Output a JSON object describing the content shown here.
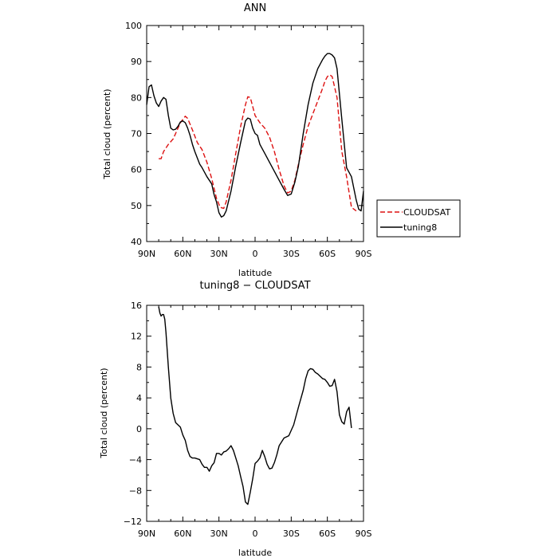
{
  "chart_data": [
    {
      "type": "line",
      "title": "ANN",
      "xlabel": "latitude",
      "ylabel": "Total cloud (percent)",
      "xlim": [
        90,
        -90
      ],
      "ylim": [
        40,
        100
      ],
      "xticks": [
        {
          "value": 90,
          "label": "90N"
        },
        {
          "value": 60,
          "label": "60N"
        },
        {
          "value": 30,
          "label": "30N"
        },
        {
          "value": 0,
          "label": "0"
        },
        {
          "value": -30,
          "label": "30S"
        },
        {
          "value": -60,
          "label": "60S"
        },
        {
          "value": -90,
          "label": "90S"
        }
      ],
      "yticks": [
        40,
        50,
        60,
        70,
        80,
        90,
        100
      ],
      "grid": false,
      "legend": "right",
      "series": [
        {
          "name": "CLOUDSAT",
          "color": "#dd1111",
          "dash": "dashed",
          "x": [
            80,
            78,
            76,
            72,
            68,
            66,
            62,
            58,
            56,
            52,
            48,
            44,
            40,
            36,
            32,
            29,
            26,
            24,
            20,
            16,
            12,
            8,
            6,
            4,
            0,
            -4,
            -8,
            -12,
            -16,
            -20,
            -24,
            -27,
            -30,
            -33,
            -36,
            -40,
            -44,
            -48,
            -52,
            -56,
            -58,
            -60,
            -62,
            -64,
            -68,
            -72,
            -76,
            -80,
            -84
          ],
          "y": [
            63,
            63,
            65,
            67,
            68.5,
            70,
            73,
            74.8,
            74.2,
            71,
            67.5,
            65.5,
            62,
            57.5,
            52,
            49.5,
            49.2,
            51,
            57,
            64.5,
            72,
            78,
            80.2,
            80,
            75,
            73,
            71.5,
            69,
            65,
            60,
            55.5,
            53.5,
            54,
            57,
            61.5,
            67,
            72,
            75.5,
            79,
            82.5,
            84.5,
            85.8,
            86.3,
            85.8,
            80,
            65,
            58,
            49.5,
            48.5
          ]
        },
        {
          "name": "tuning8",
          "color": "#000000",
          "dash": "solid",
          "x": [
            90,
            88,
            86,
            84,
            82,
            80,
            78,
            76,
            74,
            72,
            70,
            68,
            66,
            64,
            62,
            60,
            58,
            56,
            54,
            52,
            50,
            46,
            44,
            40,
            36,
            34,
            32,
            30,
            28,
            26,
            24,
            20,
            16,
            12,
            8,
            6,
            4,
            2,
            0,
            -2,
            -4,
            -8,
            -12,
            -16,
            -20,
            -24,
            -27,
            -30,
            -33,
            -36,
            -40,
            -44,
            -48,
            -52,
            -56,
            -58,
            -60,
            -62,
            -64,
            -66,
            -68,
            -72,
            -76,
            -80,
            -84,
            -86,
            -88,
            -90
          ],
          "y": [
            78,
            83,
            83.5,
            80.5,
            78.5,
            77.5,
            79,
            80,
            79.5,
            75,
            71.5,
            71,
            71.2,
            72,
            73.2,
            73.5,
            73,
            71.5,
            69.5,
            67,
            65,
            61.5,
            60.5,
            58,
            56,
            53,
            51,
            48,
            46.8,
            47.2,
            48.5,
            54,
            61,
            67.5,
            73.5,
            74.3,
            74,
            71.5,
            70,
            69.5,
            67,
            64.5,
            62,
            59.5,
            57,
            54.5,
            52.8,
            53.2,
            56.5,
            61,
            70,
            78,
            84,
            88,
            90.5,
            91.5,
            92.2,
            92.2,
            91.8,
            91,
            88,
            74,
            60.5,
            58,
            51.5,
            49,
            48.5,
            54
          ]
        }
      ]
    },
    {
      "type": "line",
      "title": "tuning8 − CLOUDSAT",
      "xlabel": "latitude",
      "ylabel": "Total cloud (percent)",
      "xlim": [
        90,
        -90
      ],
      "ylim": [
        -12,
        16
      ],
      "xticks": [
        {
          "value": 90,
          "label": "90N"
        },
        {
          "value": 60,
          "label": "60N"
        },
        {
          "value": 30,
          "label": "30N"
        },
        {
          "value": 0,
          "label": "0"
        },
        {
          "value": -30,
          "label": "30S"
        },
        {
          "value": -60,
          "label": "60S"
        },
        {
          "value": -90,
          "label": "90S"
        }
      ],
      "yticks": [
        -12,
        -8,
        -4,
        0,
        4,
        8,
        12,
        16
      ],
      "grid": false,
      "series": [
        {
          "color": "#000000",
          "dash": "solid",
          "x": [
            80,
            79,
            78,
            77,
            76,
            75,
            74,
            72,
            70,
            68,
            66,
            64,
            62,
            60,
            58,
            56,
            54,
            52,
            50,
            46,
            44,
            42,
            40,
            38,
            36,
            34,
            32,
            30,
            28,
            26,
            24,
            22,
            20,
            18,
            16,
            14,
            12,
            10,
            8,
            6,
            4,
            2,
            0,
            -2,
            -4,
            -6,
            -8,
            -10,
            -12,
            -14,
            -16,
            -18,
            -20,
            -24,
            -28,
            -32,
            -36,
            -40,
            -42,
            -44,
            -46,
            -48,
            -50,
            -52,
            -54,
            -56,
            -58,
            -60,
            -62,
            -64,
            -66,
            -68,
            -70,
            -72,
            -74,
            -76,
            -78,
            -80
          ],
          "y": [
            15.8,
            15,
            14.6,
            14.8,
            14.8,
            14.2,
            12.5,
            8,
            4,
            2,
            0.8,
            0.5,
            0.2,
            -0.8,
            -1.5,
            -2.8,
            -3.6,
            -3.8,
            -3.8,
            -4,
            -4.6,
            -5,
            -5,
            -5.5,
            -4.8,
            -4.4,
            -3.2,
            -3.2,
            -3.4,
            -3,
            -2.9,
            -2.6,
            -2.2,
            -2.8,
            -3.8,
            -4.8,
            -6.2,
            -7.5,
            -9.5,
            -9.8,
            -8.2,
            -6.5,
            -4.5,
            -4.2,
            -3.8,
            -2.8,
            -3.6,
            -4.6,
            -5.2,
            -5.1,
            -4.4,
            -3.4,
            -2.2,
            -1.2,
            -0.9,
            0.5,
            2.8,
            5,
            6.5,
            7.5,
            7.8,
            7.7,
            7.3,
            7.1,
            6.8,
            6.5,
            6.4,
            6,
            5.5,
            5.6,
            6.4,
            4.8,
            1.8,
            0.9,
            0.6,
            2.2,
            2.8,
            0.1
          ]
        }
      ]
    }
  ]
}
